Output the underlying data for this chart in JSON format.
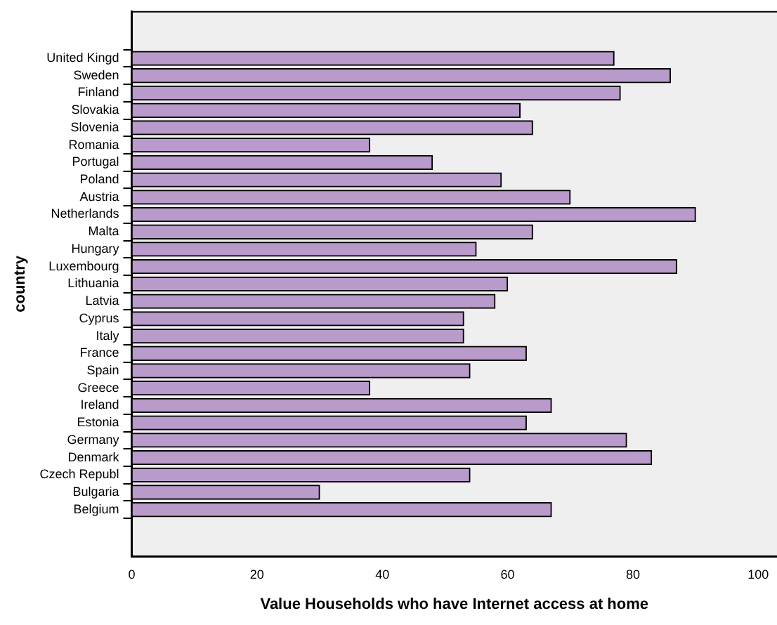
{
  "chart_data": {
    "type": "bar",
    "orientation": "horizontal",
    "xlabel": "Value Households who have Internet access at home",
    "ylabel": "country",
    "categories": [
      "United Kingd",
      "Sweden",
      "Finland",
      "Slovakia",
      "Slovenia",
      "Romania",
      "Portugal",
      "Poland",
      "Austria",
      "Netherlands",
      "Malta",
      "Hungary",
      "Luxembourg",
      "Lithuania",
      "Latvia",
      "Cyprus",
      "Italy",
      "France",
      "Spain",
      "Greece",
      "Ireland",
      "Estonia",
      "Germany",
      "Denmark",
      "Czech Republ",
      "Bulgaria",
      "Belgium"
    ],
    "values": [
      77,
      86,
      78,
      62,
      64,
      38,
      48,
      59,
      70,
      90,
      64,
      55,
      87,
      60,
      58,
      53,
      53,
      63,
      54,
      38,
      67,
      63,
      79,
      83,
      54,
      30,
      67
    ],
    "color": "#b89acb",
    "xlim": [
      0,
      103
    ],
    "xticks": [
      0,
      20,
      40,
      60,
      80,
      100
    ],
    "grid": false,
    "legend": false
  }
}
